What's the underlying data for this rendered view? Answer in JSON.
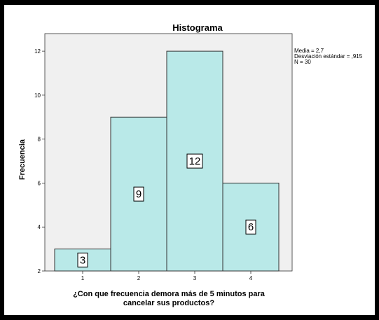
{
  "chart_data": {
    "type": "bar",
    "title": "Histograma",
    "xlabel": [
      "¿Con que frecuencia demora más de 5 minutos para",
      "cancelar sus productos?"
    ],
    "ylabel": "Frecuencia",
    "categories": [
      "1",
      "2",
      "3",
      "4"
    ],
    "values": [
      3,
      9,
      12,
      6
    ],
    "data_labels": [
      "3",
      "9",
      "12",
      "6"
    ],
    "ylim": [
      2,
      12.8
    ],
    "yticks": [
      2,
      4,
      6,
      8,
      10,
      12
    ],
    "grid": false,
    "stats": [
      "Media = 2,7",
      "Desviación estándar = ,915",
      "N = 30"
    ],
    "colors": {
      "bar_fill": "#b9e9e8",
      "bar_stroke": "#333333",
      "plot_bg": "#f0f0f0",
      "frame_bg": "#000000"
    }
  }
}
